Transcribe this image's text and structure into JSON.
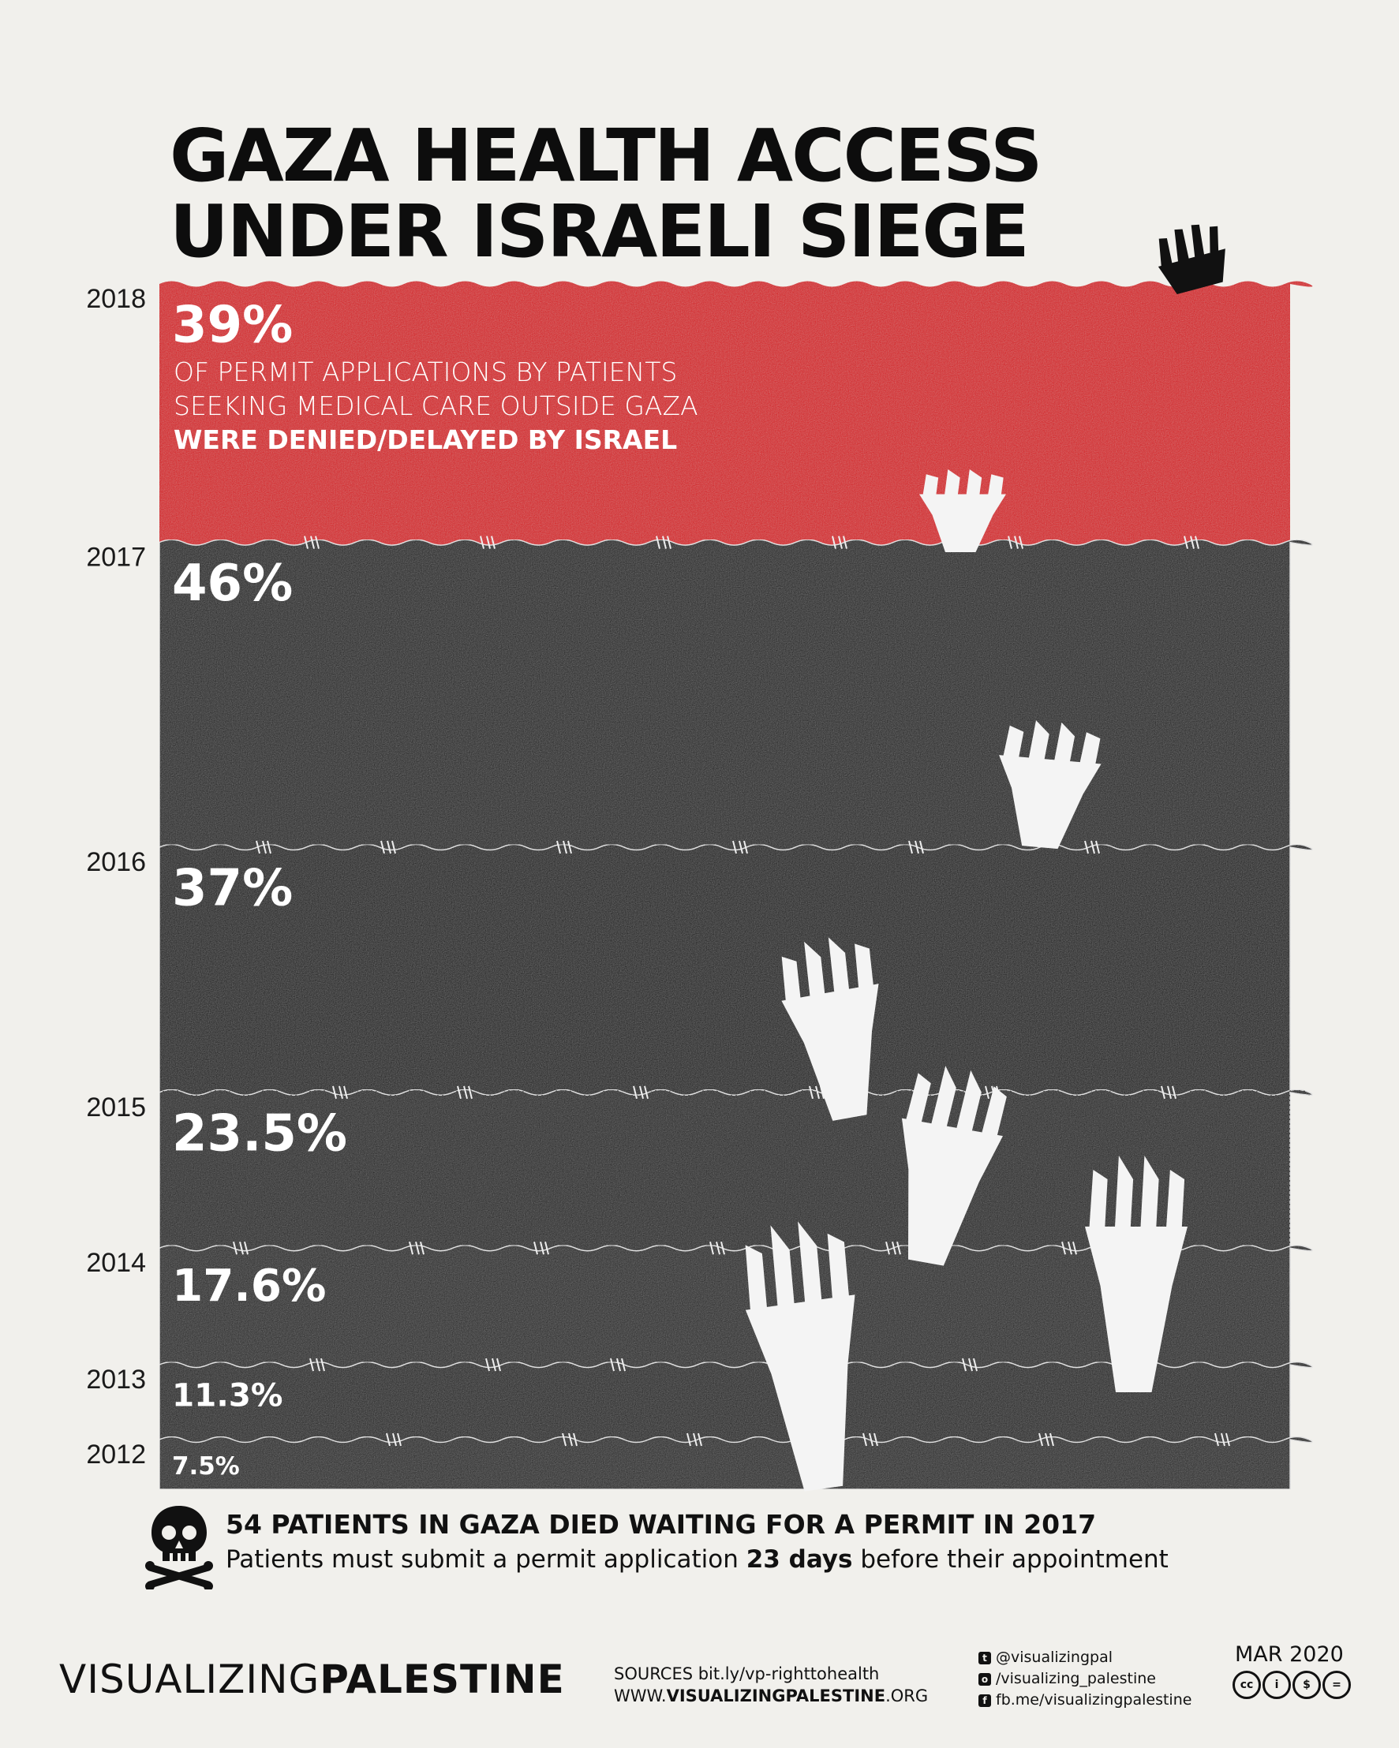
{
  "title": {
    "line1": "GAZA HEALTH ACCESS",
    "line2": "UNDER ISRAELI SIEGE"
  },
  "description": {
    "line1": "OF PERMIT APPLICATIONS BY PATIENTS",
    "line2": "SEEKING MEDICAL CARE OUTSIDE GAZA",
    "line3": "WERE DENIED/DELAYED BY ISRAEL"
  },
  "chart_data": {
    "type": "area",
    "categories": [
      "2018",
      "2017",
      "2016",
      "2015",
      "2014",
      "2013",
      "2012"
    ],
    "values": [
      39,
      46,
      37,
      23.5,
      17.6,
      11.3,
      7.5
    ],
    "labels": [
      "39%",
      "46%",
      "37%",
      "23.5%",
      "17.6%",
      "11.3%",
      "7.5%"
    ],
    "unit": "%",
    "title": "GAZA HEALTH ACCESS UNDER ISRAELI SIEGE",
    "highlight_color": "#d7161b",
    "band_color": "#1c1c1c"
  },
  "footnote": {
    "title": "54 PATIENTS IN GAZA DIED WAITING FOR A PERMIT IN 2017",
    "body_before": "Patients must submit a permit application ",
    "body_bold": "23 days",
    "body_after": " before their appointment",
    "icon": "skull-crossbones-icon"
  },
  "footer": {
    "brand_light": "VISUALIZING",
    "brand_bold": "PALESTINE",
    "sources_line": "SOURCES bit.ly/vp-righttohealth",
    "website_prefix": "WWW.",
    "website_bold": "VISUALIZINGPALESTINE",
    "website_suffix": ".ORG",
    "twitter": "@visualizingpal",
    "instagram": "/visualizing_palestine",
    "facebook": "fb.me/visualizingpalestine",
    "date": "MAR 2020",
    "license_icons": [
      "cc",
      "by",
      "nc",
      "nd"
    ]
  }
}
